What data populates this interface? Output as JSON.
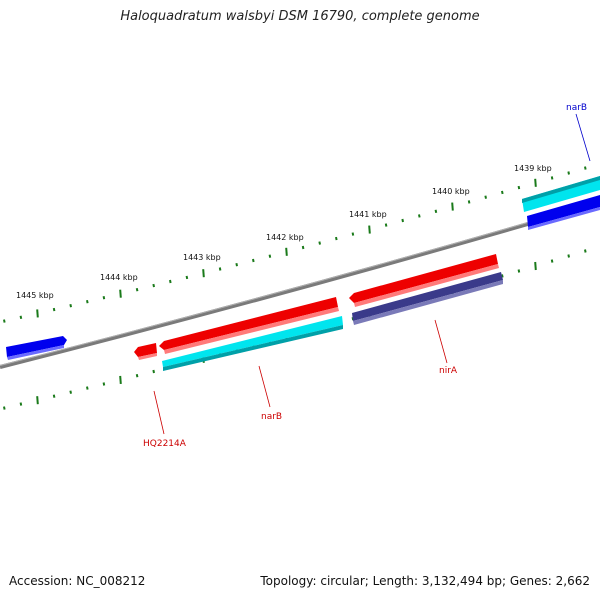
{
  "title": "Haloquadratum walsbyi DSM 16790, complete genome",
  "footer": {
    "accession": "Accession: NC_008212",
    "genome_info": "Topology: circular; Length: 3,132,494 bp; Genes: 2,662"
  },
  "colors": {
    "backbone": "#808080",
    "tick": "#1a7a1a",
    "gene_red": "#ee0000",
    "gene_cyan": "#00e5ee",
    "gene_blue": "#0000ee",
    "gene_slate": "#3a3a8a",
    "label_red": "#cc0000",
    "label_blue": "#0000cc"
  },
  "kbp_scale": [
    {
      "text": "1445 kbp",
      "value": 1445
    },
    {
      "text": "1444 kbp",
      "value": 1444
    },
    {
      "text": "1443 kbp",
      "value": 1443
    },
    {
      "text": "1442 kbp",
      "value": 1442
    },
    {
      "text": "1441 kbp",
      "value": 1441
    },
    {
      "text": "1440 kbp",
      "value": 1440
    },
    {
      "text": "1439 kbp",
      "value": 1439
    }
  ],
  "gene_labels": [
    {
      "text": "narB",
      "color": "blue"
    },
    {
      "text": "nirA",
      "color": "red"
    },
    {
      "text": "narB",
      "color": "red"
    },
    {
      "text": "HQ2214A",
      "color": "red"
    }
  ]
}
